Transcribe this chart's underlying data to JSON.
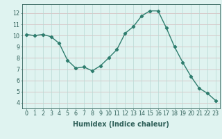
{
  "x": [
    0,
    1,
    2,
    3,
    4,
    5,
    6,
    7,
    8,
    9,
    10,
    11,
    12,
    13,
    14,
    15,
    16,
    17,
    18,
    19,
    20,
    21,
    22,
    23
  ],
  "y": [
    10.1,
    10.0,
    10.1,
    9.9,
    9.3,
    7.8,
    7.1,
    7.2,
    6.85,
    7.3,
    8.0,
    8.75,
    10.2,
    10.8,
    11.75,
    12.2,
    12.2,
    10.7,
    9.0,
    7.6,
    6.35,
    5.3,
    4.85,
    4.2
  ],
  "line_color": "#2e7d6e",
  "marker": "D",
  "marker_size": 2.2,
  "bg_color": "#dff3f0",
  "hgrid_color": "#d4b8b8",
  "vgrid_color": "#b8d8d4",
  "xlabel": "Humidex (Indice chaleur)",
  "xlim": [
    -0.5,
    23.5
  ],
  "ylim": [
    3.5,
    12.8
  ],
  "yticks": [
    4,
    5,
    6,
    7,
    8,
    9,
    10,
    11,
    12
  ],
  "xticks": [
    0,
    1,
    2,
    3,
    4,
    5,
    6,
    7,
    8,
    9,
    10,
    11,
    12,
    13,
    14,
    15,
    16,
    17,
    18,
    19,
    20,
    21,
    22,
    23
  ],
  "font_color": "#2e5f58",
  "tick_fontsize": 5.8,
  "label_fontsize": 7.0,
  "linewidth": 1.0
}
